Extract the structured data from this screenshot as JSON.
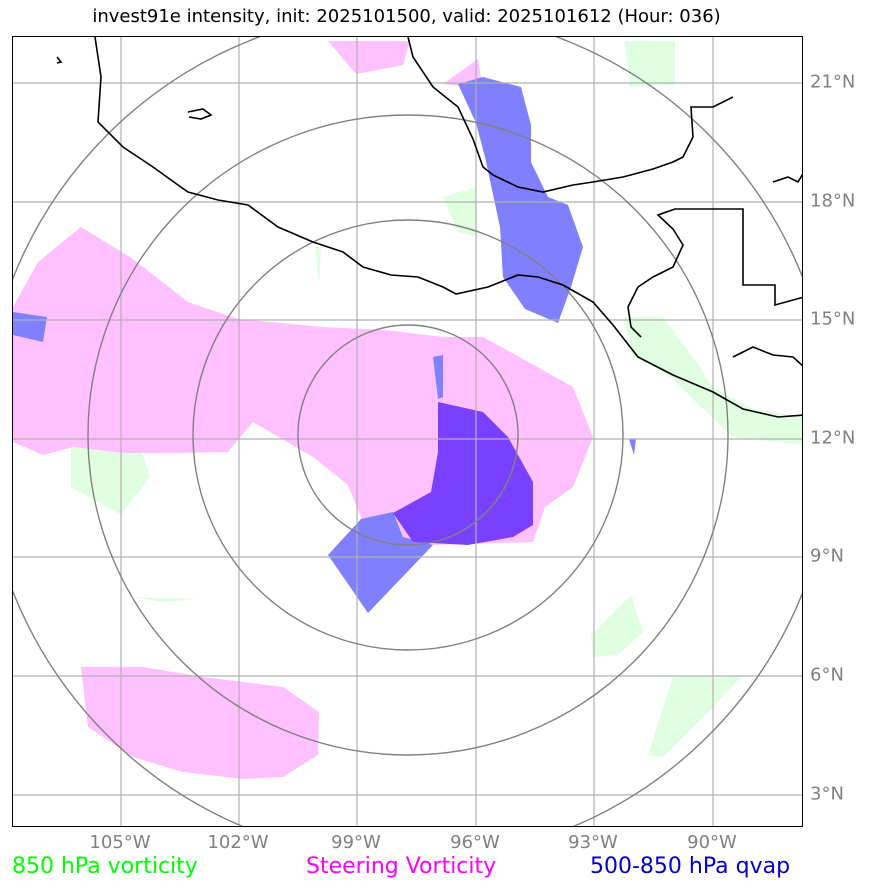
{
  "title": "invest91e intensity, init: 2025101500, valid: 2025101612 (Hour: 036)",
  "lat_labels": [
    "21°N",
    "18°N",
    "15°N",
    "12°N",
    "9°N",
    "6°N",
    "3°N"
  ],
  "lon_labels": [
    "105°W",
    "102°W",
    "99°W",
    "96°W",
    "93°W",
    "90°W"
  ],
  "legend": {
    "vort850": {
      "label": "850 hPa vorticity",
      "color": "#00ff00"
    },
    "steering": {
      "label": "Steering Vorticity",
      "color": "#ff00ff"
    },
    "qvap": {
      "label": "500-850 hPa qvap",
      "color": "#0000cc"
    }
  },
  "colors": {
    "grid": "#b0b0b0",
    "range_rings": "#808080",
    "coastline": "#000000",
    "vort850_fill": "#e0ffe0",
    "steering_fill": "#ffc0ff",
    "qvap_fill": "#8080ff",
    "overlap_fill": "#7a40ff"
  }
}
